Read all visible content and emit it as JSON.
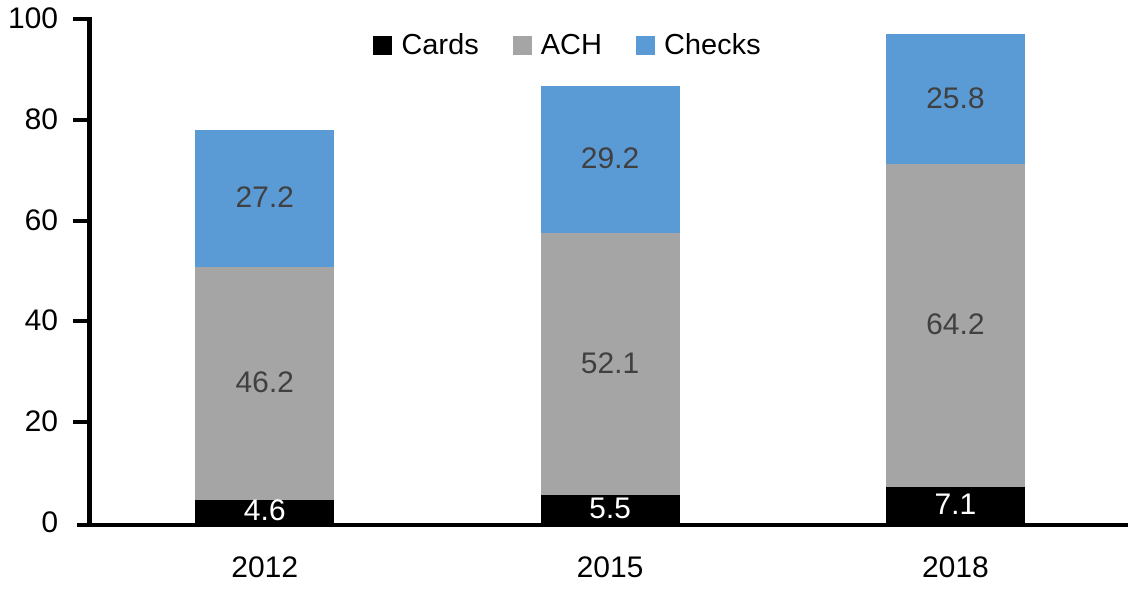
{
  "chart_data": {
    "type": "bar",
    "stacked": true,
    "title": "",
    "xlabel": "",
    "ylabel": "",
    "categories": [
      "2012",
      "2015",
      "2018"
    ],
    "series": [
      {
        "name": "Cards",
        "color": "#000000",
        "label_color": "#ffffff",
        "values": [
          4.6,
          5.5,
          7.1
        ]
      },
      {
        "name": "ACH",
        "color": "#a5a5a5",
        "label_color": "#404040",
        "values": [
          46.2,
          52.1,
          64.2
        ]
      },
      {
        "name": "Checks",
        "color": "#5b9bd5",
        "label_color": "#404040",
        "values": [
          27.2,
          29.2,
          25.8
        ]
      }
    ],
    "totals": [
      78.0,
      86.8,
      97.1
    ],
    "y_ticks": [
      "0",
      "20",
      "40",
      "60",
      "80",
      "100"
    ],
    "ylim": [
      0,
      100
    ],
    "legend_position": "top",
    "legend_order": [
      "Cards",
      "ACH",
      "Checks"
    ],
    "grid": false,
    "axis_color": "#000000"
  }
}
